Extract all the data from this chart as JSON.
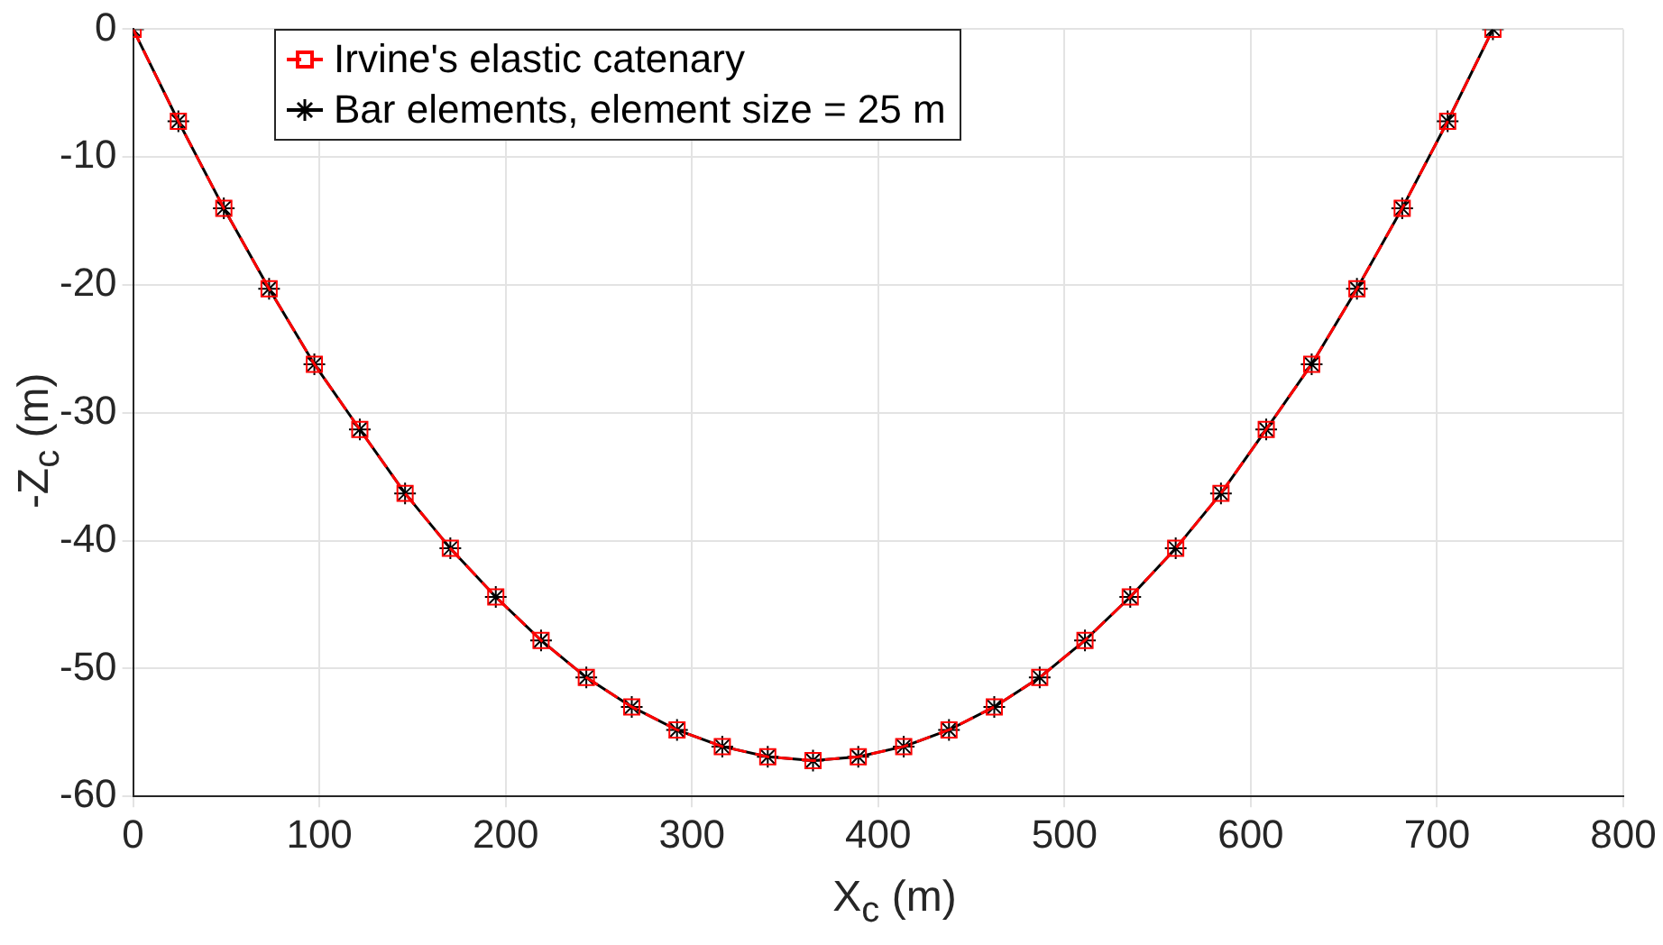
{
  "chart_data": {
    "type": "line",
    "xlabel": "X$_{c}$ (m)",
    "ylabel": "-Z$_{c}$ (m)",
    "x": [
      0,
      24.3,
      48.7,
      73,
      97.3,
      121.7,
      146,
      170.3,
      194.7,
      219,
      243.3,
      267.7,
      292,
      316.3,
      340.7,
      365,
      389.3,
      413.7,
      438,
      462.3,
      486.7,
      511,
      535.3,
      559.7,
      584,
      608.3,
      632.7,
      657,
      681.3,
      705.7,
      730
    ],
    "series": [
      {
        "name": "Irvine's elastic catenary",
        "color": "#ff0000",
        "marker": "square",
        "line_style": "dashed",
        "values": [
          0,
          -7.2,
          -14,
          -20.3,
          -26.2,
          -31.3,
          -36.3,
          -40.6,
          -44.4,
          -47.8,
          -50.7,
          -53,
          -54.8,
          -56.1,
          -56.9,
          -57.2,
          -56.9,
          -56.1,
          -54.8,
          -53,
          -50.7,
          -47.8,
          -44.4,
          -40.6,
          -36.3,
          -31.3,
          -26.2,
          -20.3,
          -14,
          -7.2,
          0
        ]
      },
      {
        "name": "Bar elements, element size = 25 m",
        "color": "#000000",
        "marker": "cross",
        "line_style": "solid",
        "values": [
          0,
          -7.2,
          -14,
          -20.3,
          -26.2,
          -31.3,
          -36.3,
          -40.6,
          -44.4,
          -47.8,
          -50.7,
          -53,
          -54.8,
          -56.1,
          -56.9,
          -57.2,
          -56.9,
          -56.1,
          -54.8,
          -53,
          -50.7,
          -47.8,
          -44.4,
          -40.6,
          -36.3,
          -31.3,
          -26.2,
          -20.3,
          -14,
          -7.2,
          0
        ]
      }
    ],
    "xlim": [
      0,
      800
    ],
    "xticks": [
      0,
      100,
      200,
      300,
      400,
      500,
      600,
      700,
      800
    ],
    "ylim": [
      -60,
      0
    ],
    "yticks": [
      -60,
      -50,
      -40,
      -30,
      -20,
      -10,
      0
    ],
    "grid": true,
    "legend": "top left"
  }
}
